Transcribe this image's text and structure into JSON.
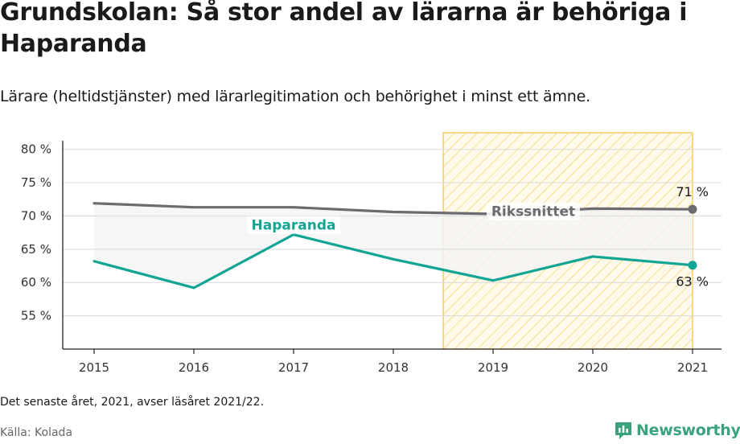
{
  "header": {
    "title": "Grundskolan: Så stor andel av lärarna är behöriga i Haparanda",
    "subtitle": "Lärare (heltidstjänster) med lärarlegitimation och behörighet i minst ett ämne."
  },
  "footer": {
    "note": "Det senaste året, 2021, avser läsåret 2021/22.",
    "source": "Källa: Kolada",
    "brand": "Newsworthy"
  },
  "colors": {
    "haparanda": "#12a594",
    "riksnittet": "#6b6b70",
    "highlight_stroke": "#f0c040",
    "highlight_fill": "#fff7dd",
    "band_fill": "#f4f4f4",
    "brand": "#3aa37c"
  },
  "chart_data": {
    "type": "line",
    "x": [
      2015,
      2016,
      2017,
      2018,
      2019,
      2020,
      2021
    ],
    "x_tick_labels": [
      "2015",
      "2016",
      "2017",
      "2018",
      "2019",
      "2020",
      "2021"
    ],
    "y_ticks": [
      55,
      60,
      65,
      70,
      75,
      80
    ],
    "y_tick_labels": [
      "55 %",
      "60 %",
      "65 %",
      "70 %",
      "75 %",
      "80 %"
    ],
    "ylim": [
      50,
      82.5
    ],
    "grid": true,
    "highlight_range": [
      2018.5,
      2021
    ],
    "series": [
      {
        "name": "Rikssnittet",
        "values": [
          71.9,
          71.3,
          71.3,
          70.6,
          70.3,
          71.1,
          71.0
        ],
        "end_label": "71 %"
      },
      {
        "name": "Haparanda",
        "values": [
          63.2,
          59.2,
          67.2,
          63.5,
          60.3,
          63.9,
          62.6
        ],
        "end_label": "63 %"
      }
    ]
  }
}
